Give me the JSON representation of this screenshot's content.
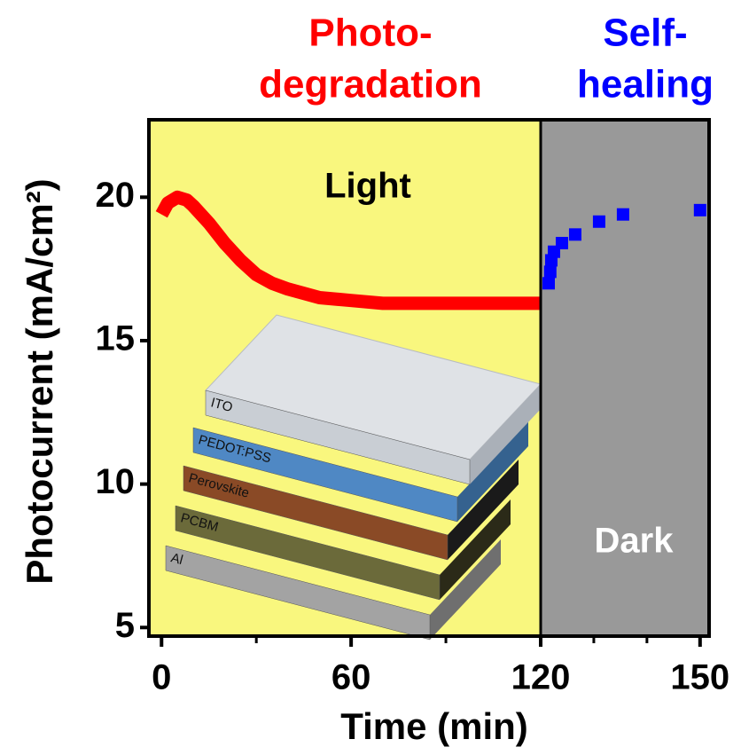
{
  "chart_data": [
    {
      "type": "line",
      "title": [
        "Photo-",
        "degradation"
      ],
      "title_color": "#ff0000",
      "region_label": "Light",
      "region_label_color": "#000000",
      "background": "#f9f77e",
      "ylabel": "Photocurrent (mA/cm²)",
      "xlabel": "Time (min)",
      "x": [
        0,
        2,
        5,
        8,
        10,
        15,
        20,
        25,
        30,
        35,
        40,
        50,
        60,
        70,
        80,
        90,
        100,
        110,
        120
      ],
      "values": [
        19.4,
        19.8,
        20.0,
        19.9,
        19.7,
        19.1,
        18.4,
        17.8,
        17.3,
        17.0,
        16.8,
        16.5,
        16.4,
        16.3,
        16.3,
        16.3,
        16.3,
        16.3,
        16.3
      ],
      "color": "#ff0000",
      "xlim": [
        -4,
        120
      ],
      "xticks": [
        0,
        60,
        120
      ],
      "xminor": [
        30,
        90
      ],
      "ylim": [
        4.7,
        22.7
      ],
      "yticks": [
        5,
        10,
        15,
        20
      ],
      "inset": [
        "ITO",
        "PEDOT:PSS",
        "Perovskite",
        "PCBM",
        "Al"
      ]
    },
    {
      "type": "scatter",
      "title": [
        "Self-",
        "healing"
      ],
      "title_color": "#0000ff",
      "region_label": "Dark",
      "region_label_color": "#ffffff",
      "background": "#999999",
      "x": [
        121.5,
        121.8,
        122,
        122.5,
        124,
        126.5,
        131,
        135.5,
        150
      ],
      "values": [
        17.0,
        17.4,
        17.8,
        18.1,
        18.4,
        18.7,
        19.15,
        19.4,
        19.55
      ],
      "color": "#0000ff",
      "xlim": [
        120,
        151.7
      ],
      "xticks": [
        150
      ],
      "xminor": [
        130,
        140
      ],
      "ylim": [
        4.7,
        22.7
      ]
    }
  ]
}
